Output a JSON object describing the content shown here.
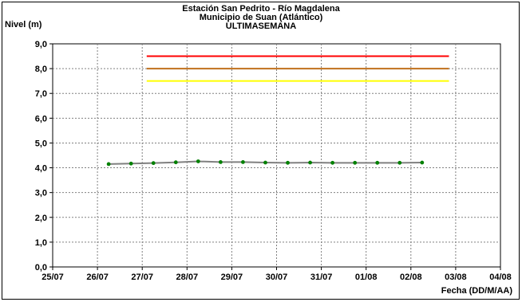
{
  "chart_data": {
    "type": "line",
    "title": [
      "Estación San Pedrito - Río Magdalena",
      "Municipio de Suan (Atlántico)",
      "ULTIMASEMANA"
    ],
    "ylabel": "Nivel (m)",
    "xlabel": "Fecha (DD/M/AA)",
    "ylim": [
      0,
      9
    ],
    "yticks": [
      "0,0",
      "1,0",
      "2,0",
      "3,0",
      "4,0",
      "5,0",
      "6,0",
      "7,0",
      "8,0",
      "9,0"
    ],
    "xticks": [
      "25/07",
      "26/07",
      "27/07",
      "28/07",
      "29/07",
      "30/07",
      "31/07",
      "01/08",
      "02/08",
      "03/08",
      "04/08"
    ],
    "xlim_days": [
      0,
      10
    ],
    "grid": true,
    "series": [
      {
        "color": "#808080",
        "marker_color": "#008000",
        "x_days": [
          1.25,
          1.75,
          2.25,
          2.75,
          3.25,
          3.75,
          4.25,
          4.75,
          5.25,
          5.75,
          6.25,
          6.75,
          7.25,
          7.75,
          8.25
        ],
        "values": [
          4.15,
          4.17,
          4.19,
          4.22,
          4.26,
          4.23,
          4.23,
          4.21,
          4.2,
          4.21,
          4.2,
          4.2,
          4.2,
          4.2,
          4.21
        ]
      }
    ],
    "thresholds": [
      {
        "color": "#ff0000",
        "value": 8.5,
        "x_start_days": 2.1,
        "x_end_days": 8.85
      },
      {
        "color": "#c0701c",
        "value": 8.0,
        "x_start_days": 2.1,
        "x_end_days": 8.85
      },
      {
        "color": "#ffff00",
        "value": 7.5,
        "x_start_days": 2.1,
        "x_end_days": 8.85
      }
    ]
  }
}
